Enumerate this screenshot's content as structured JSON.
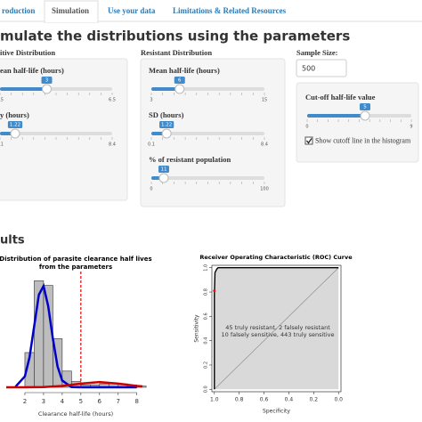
{
  "tabs": [
    "roduction",
    "Simulation",
    "Use your data",
    "Limitations & Related Resources"
  ],
  "heading": "mulate the distributions using the parameters",
  "panels": [
    {
      "title": "itive Distribution",
      "sliders": [
        {
          "label": "ean half-life (hours)",
          "min": 0.5,
          "max": 6.5,
          "value": 3
        },
        {
          "label": "y (hours)",
          "min": 0.1,
          "max": 8.4,
          "value": 1.22
        }
      ]
    },
    {
      "title": "Resistant Distribution",
      "sliders": [
        {
          "label": "Mean half-life (hours)",
          "min": 3,
          "max": 15,
          "value": 6
        },
        {
          "label": "SD (hours)",
          "min": 0.1,
          "max": 8.4,
          "value": 1.22
        },
        {
          "label": "% of resistant population",
          "min": 0,
          "max": 100,
          "value": 11
        }
      ]
    }
  ],
  "sample_size": {
    "label": "Sample Size:",
    "value": 500
  },
  "cutoff": {
    "title": "Cut-off half-life value",
    "min": 0,
    "max": 9,
    "value": 5,
    "checkbox": "Show cutoff line in the histogram"
  },
  "results_heading": "ults",
  "chart_data": [
    {
      "type": "histogram",
      "title": [
        "Distribution of parasite clearance half lives",
        "from the parameters"
      ],
      "xlabel": "Clearance half-life (hours)",
      "bins": [
        1.5,
        2,
        2.5,
        3,
        3.5,
        4,
        4.5,
        5,
        5.5,
        6,
        6.5,
        7,
        7.5,
        8,
        8.5
      ],
      "values": [
        0,
        0.3,
        0.92,
        0.88,
        0.42,
        0.14,
        0.05,
        0.02,
        0.02,
        0.03,
        0.03,
        0.03,
        0.02,
        0.01
      ],
      "color": "#bdbdbd",
      "xlim": [
        1,
        8.3
      ],
      "xticks": [
        2,
        3,
        4,
        5,
        6,
        7,
        8
      ],
      "ylim": [
        0,
        1
      ],
      "series": [
        {
          "color": "#0000cc",
          "x": [
            1.5,
            2,
            2.25,
            2.5,
            2.75,
            3,
            3.25,
            3.5,
            3.75,
            4,
            4.5,
            5,
            6,
            8
          ],
          "values": [
            0.005,
            0.095,
            0.26,
            0.53,
            0.8,
            0.875,
            0.7,
            0.42,
            0.18,
            0.058,
            0.002,
            0,
            0,
            0
          ]
        },
        {
          "color": "#cc0000",
          "x": [
            1,
            2,
            3,
            4,
            5,
            6,
            7,
            8,
            8.3
          ],
          "values": [
            0,
            0.0002,
            0.002,
            0.012,
            0.032,
            0.045,
            0.032,
            0.012,
            0.008
          ]
        }
      ],
      "cutoff": 5,
      "cutoff_color": "#dd0000"
    },
    {
      "type": "line",
      "title": "Receiver Operating Characteristic (ROC) Curve",
      "xlabel": "Specificity",
      "ylabel": "Sensitivity",
      "x": [
        1,
        1,
        0.995,
        0.98,
        0.97,
        0
      ],
      "values": [
        0,
        0.78,
        0.96,
        0.99,
        1,
        1
      ],
      "color": "#000000",
      "xlim": [
        1.02,
        -0.02
      ],
      "ylim": [
        -0.02,
        1.02
      ],
      "xticks": [
        {
          "value": 1,
          "label": "1.0"
        },
        {
          "value": 0.8,
          "label": "0.8"
        },
        {
          "value": 0.6,
          "label": "0.6"
        },
        {
          "value": 0.4,
          "label": "0.4"
        },
        {
          "value": 0.2,
          "label": "0.2"
        },
        {
          "value": 0,
          "label": "0.0"
        }
      ],
      "yticks": [
        {
          "value": 0,
          "label": "0.0"
        },
        {
          "value": 0.2,
          "label": "0.2"
        },
        {
          "value": 0.4,
          "label": "0.4"
        },
        {
          "value": 0.6,
          "label": "0.6"
        },
        {
          "value": 0.8,
          "label": "0.8"
        },
        {
          "value": 1,
          "label": "1.0"
        }
      ],
      "point": {
        "x": 1,
        "y": 0.81,
        "color": "#ff0000"
      },
      "annotation": [
        "45 truly resistant, 2 falsely resistant",
        "10 falsely sensitive, 443 truly sensitive"
      ]
    }
  ]
}
